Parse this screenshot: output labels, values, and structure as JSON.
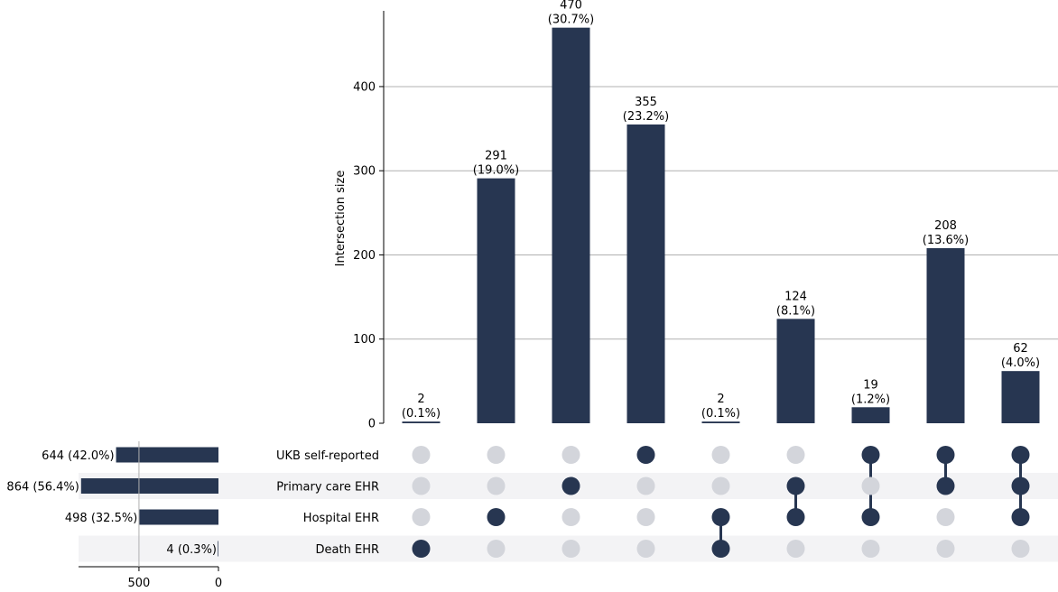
{
  "chart_data": {
    "type": "upset",
    "ylabel": "Intersection size",
    "ylim": [
      0,
      490
    ],
    "yticks": [
      "0",
      "100",
      "200",
      "300",
      "400"
    ],
    "grid": true,
    "bar_color": "#273651",
    "inactive_dot_color": "#d3d5db",
    "shade_color": "#f3f3f5",
    "sets": [
      {
        "name": "UKB self-reported",
        "size": 644,
        "label": "644 (42.0%)"
      },
      {
        "name": "Primary care EHR",
        "size": 864,
        "label": "864 (56.4%)"
      },
      {
        "name": "Hospital EHR",
        "size": 498,
        "label": "498 (32.5%)"
      },
      {
        "name": "Death EHR",
        "size": 4,
        "label": "4 (0.3%)"
      }
    ],
    "set_size_axis": {
      "ticks": [
        "500",
        "0"
      ],
      "tick_values": [
        500,
        0
      ],
      "max": 880
    },
    "intersections": [
      {
        "members": [
          "Death EHR"
        ],
        "value": 2,
        "label": "2",
        "pct": "(0.1%)"
      },
      {
        "members": [
          "Hospital EHR"
        ],
        "value": 291,
        "label": "291",
        "pct": "(19.0%)"
      },
      {
        "members": [
          "Primary care EHR"
        ],
        "value": 470,
        "label": "470",
        "pct": "(30.7%)"
      },
      {
        "members": [
          "UKB self-reported"
        ],
        "value": 355,
        "label": "355",
        "pct": "(23.2%)"
      },
      {
        "members": [
          "Hospital EHR",
          "Death EHR"
        ],
        "value": 2,
        "label": "2",
        "pct": "(0.1%)"
      },
      {
        "members": [
          "Primary care EHR",
          "Hospital EHR"
        ],
        "value": 124,
        "label": "124",
        "pct": "(8.1%)"
      },
      {
        "members": [
          "UKB self-reported",
          "Hospital EHR"
        ],
        "value": 19,
        "label": "19",
        "pct": "(1.2%)"
      },
      {
        "members": [
          "UKB self-reported",
          "Primary care EHR"
        ],
        "value": 208,
        "label": "208",
        "pct": "(13.6%)"
      },
      {
        "members": [
          "UKB self-reported",
          "Primary care EHR",
          "Hospital EHR"
        ],
        "value": 62,
        "label": "62",
        "pct": "(4.0%)"
      }
    ]
  }
}
